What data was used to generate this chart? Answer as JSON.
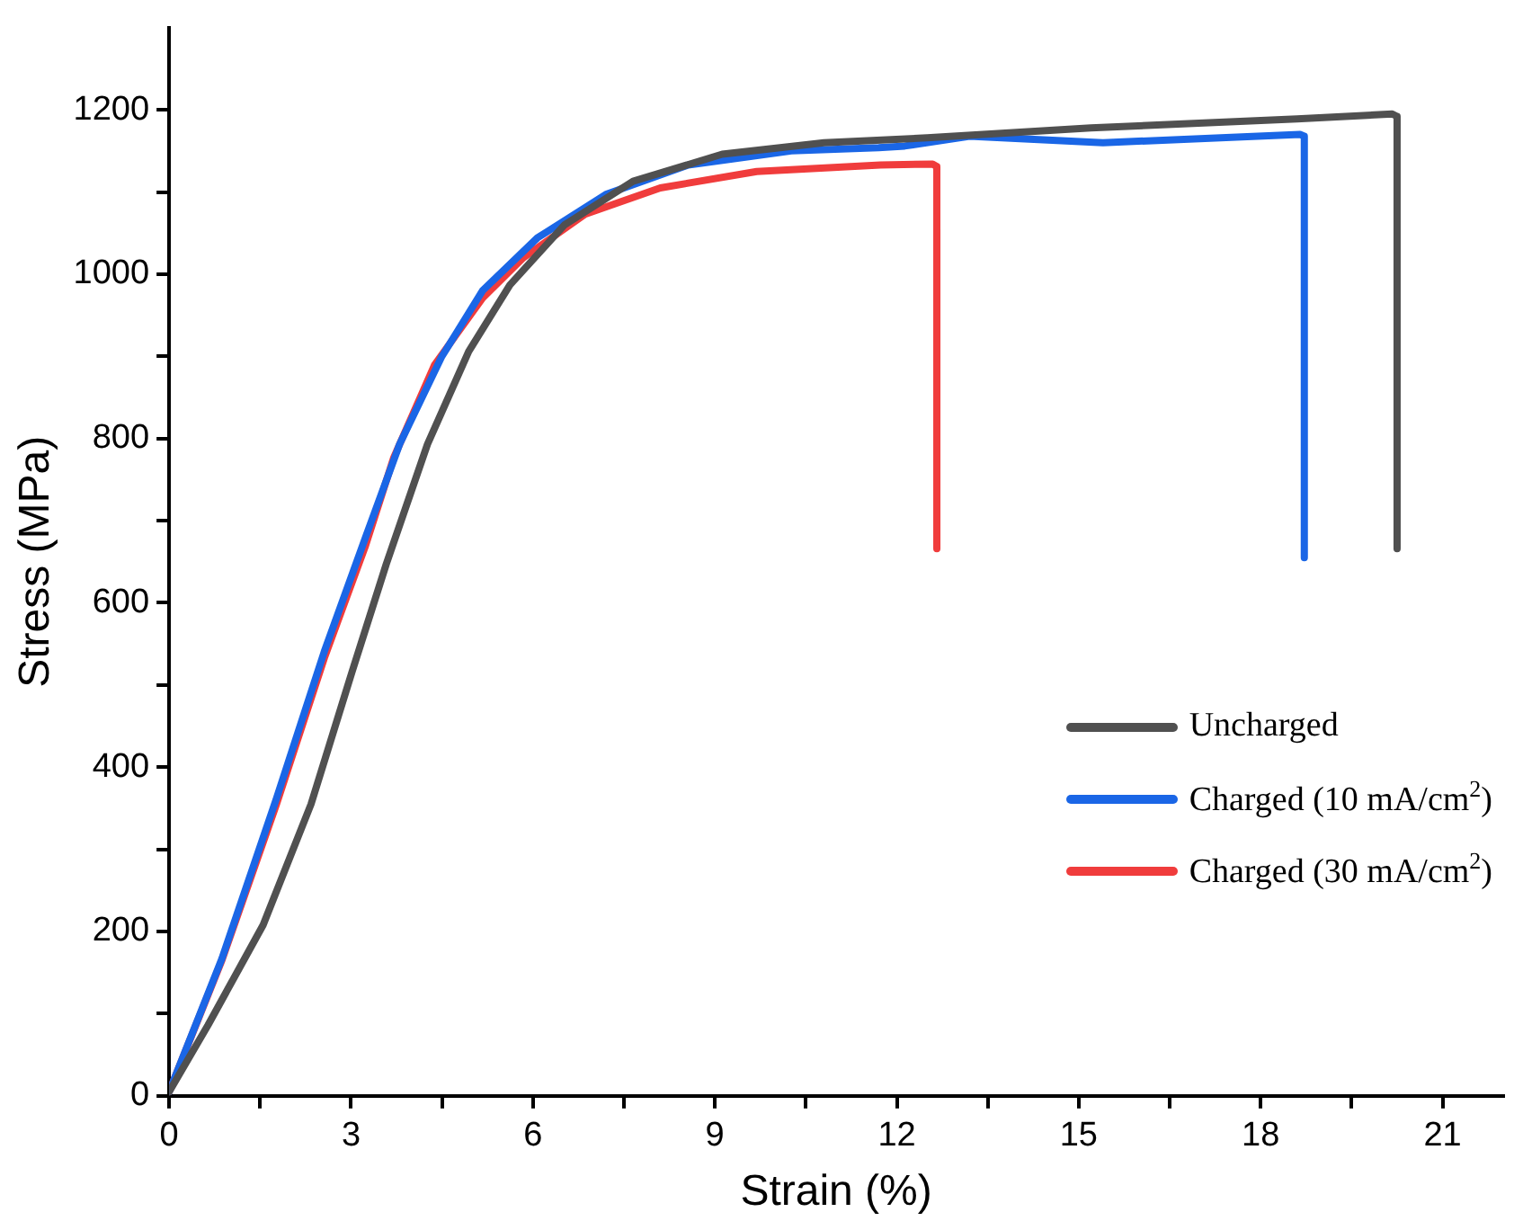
{
  "chart_data": {
    "type": "line",
    "xlabel": "Strain (%)",
    "ylabel": "Stress (MPa)",
    "xlim": [
      0,
      22
    ],
    "ylim": [
      0,
      1300
    ],
    "xticks": [
      0,
      {
        "value": 1.5,
        "label": null
      },
      3,
      {
        "value": 4.5,
        "label": null
      },
      6,
      {
        "value": 7.5,
        "label": null
      },
      9,
      {
        "value": 10.5,
        "label": null
      },
      12,
      {
        "value": 13.5,
        "label": null
      },
      15,
      {
        "value": 16.5,
        "label": null
      },
      18,
      {
        "value": 19.5,
        "label": null
      },
      21
    ],
    "yticks": [
      0,
      {
        "value": 100,
        "label": null
      },
      200,
      {
        "value": 300,
        "label": null
      },
      400,
      {
        "value": 500,
        "label": null
      },
      600,
      {
        "value": 700,
        "label": null
      },
      800,
      {
        "value": 900,
        "label": null
      },
      1000,
      {
        "value": 1100,
        "label": null
      },
      1200
    ],
    "grid": false,
    "legend": "bottom right",
    "line_style": "solid",
    "series": [
      {
        "name": "Uncharged",
        "color": "#505050",
        "x": [
          0,
          0.64,
          1.55,
          2.34,
          3.02,
          3.58,
          4.26,
          4.94,
          5.62,
          6.52,
          7.65,
          9.12,
          10.8,
          12.5,
          15.2,
          18.6,
          20.17,
          20.25,
          20.25
        ],
        "values": [
          5,
          86,
          208,
          355,
          517,
          647,
          793,
          906,
          987,
          1060,
          1113,
          1146,
          1160,
          1166,
          1178,
          1189,
          1195,
          1192,
          666
        ]
      },
      {
        "name": "Charged (10 mA/cm$^{2}$)",
        "color": "#1a66e6",
        "x": [
          0,
          0.87,
          1.77,
          2.56,
          3.24,
          3.8,
          4.49,
          5.17,
          6.07,
          7.2,
          8.56,
          10.26,
          11.7,
          12.13,
          13.2,
          15.4,
          18.65,
          18.72,
          18.72
        ],
        "values": [
          5,
          167,
          362,
          541,
          680,
          793,
          899,
          980,
          1044,
          1097,
          1133,
          1150,
          1154,
          1156,
          1168,
          1160,
          1170,
          1168,
          655
        ]
      },
      {
        "name": "Charged (30 mA/cm$^{2}$)",
        "color": "#f03c3c",
        "x": [
          0,
          0.87,
          1.77,
          2.56,
          3.24,
          3.7,
          4.38,
          5.17,
          5.84,
          6.86,
          8.1,
          9.69,
          11.73,
          12.59,
          12.66,
          12.66
        ],
        "values": [
          5,
          165,
          355,
          533,
          670,
          776,
          890,
          971,
          1020,
          1073,
          1105,
          1125,
          1133,
          1134,
          1131,
          666
        ]
      }
    ]
  }
}
